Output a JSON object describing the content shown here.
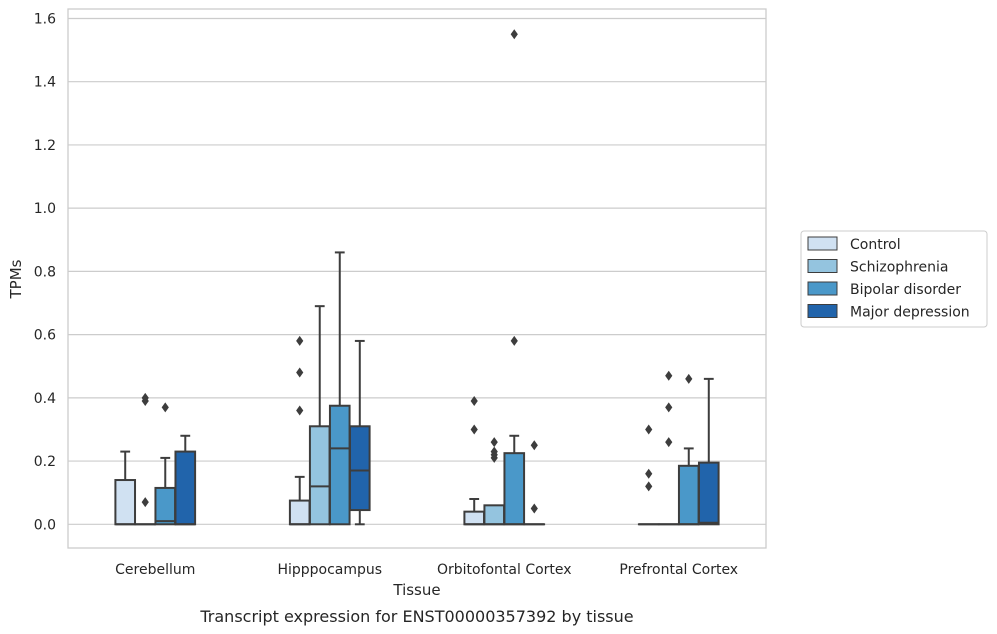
{
  "chart_data": {
    "type": "boxplot",
    "caption": "Transcript expression for ENST00000357392 by tissue",
    "xlabel": "Tissue",
    "ylabel": "TPMs",
    "ylim": [
      -0.075,
      1.63
    ],
    "yticks": [
      0.0,
      0.2,
      0.4,
      0.6,
      0.8,
      1.0,
      1.2,
      1.4,
      1.6
    ],
    "ytick_labels": [
      "0.0",
      "0.2",
      "0.4",
      "0.6",
      "0.8",
      "1.0",
      "1.2",
      "1.4",
      "1.6"
    ],
    "grid": "horizontal",
    "legend_position": "right",
    "categories": [
      "Cerebellum",
      "Hipppocampus",
      "Orbitofontal Cortex",
      "Prefrontal Cortex"
    ],
    "series": [
      {
        "name": "Control",
        "color": "#d0e1f2",
        "boxes": [
          {
            "whisker_low": 0.0,
            "q1": 0.0,
            "median": 0.0,
            "q3": 0.14,
            "whisker_high": 0.23,
            "outliers": []
          },
          {
            "whisker_low": 0.0,
            "q1": 0.0,
            "median": 0.0,
            "q3": 0.075,
            "whisker_high": 0.15,
            "outliers": [
              0.36,
              0.48,
              0.58
            ]
          },
          {
            "whisker_low": 0.0,
            "q1": 0.0,
            "median": 0.0,
            "q3": 0.04,
            "whisker_high": 0.08,
            "outliers": [
              0.3,
              0.39
            ]
          },
          {
            "whisker_low": 0.0,
            "q1": 0.0,
            "median": 0.0,
            "q3": 0.0,
            "whisker_high": 0.0,
            "outliers": [
              0.12,
              0.16,
              0.3
            ]
          }
        ]
      },
      {
        "name": "Schizophrenia",
        "color": "#94c4df",
        "boxes": [
          {
            "whisker_low": 0.0,
            "q1": 0.0,
            "median": 0.0,
            "q3": 0.0,
            "whisker_high": 0.0,
            "outliers": [
              0.07,
              0.39,
              0.4
            ]
          },
          {
            "whisker_low": 0.0,
            "q1": 0.0,
            "median": 0.12,
            "q3": 0.31,
            "whisker_high": 0.69,
            "outliers": []
          },
          {
            "whisker_low": 0.0,
            "q1": 0.0,
            "median": 0.0,
            "q3": 0.06,
            "whisker_high": 0.06,
            "outliers": [
              0.21,
              0.22,
              0.23,
              0.26
            ]
          },
          {
            "whisker_low": 0.0,
            "q1": 0.0,
            "median": 0.0,
            "q3": 0.0,
            "whisker_high": 0.0,
            "outliers": [
              0.26,
              0.37,
              0.47
            ]
          }
        ]
      },
      {
        "name": "Bipolar disorder",
        "color": "#4a98c9",
        "boxes": [
          {
            "whisker_low": 0.0,
            "q1": 0.0,
            "median": 0.01,
            "q3": 0.115,
            "whisker_high": 0.21,
            "outliers": [
              0.37
            ]
          },
          {
            "whisker_low": 0.0,
            "q1": 0.0,
            "median": 0.24,
            "q3": 0.375,
            "whisker_high": 0.86,
            "outliers": []
          },
          {
            "whisker_low": 0.0,
            "q1": 0.0,
            "median": 0.0,
            "q3": 0.225,
            "whisker_high": 0.28,
            "outliers": [
              0.58,
              1.55
            ]
          },
          {
            "whisker_low": 0.0,
            "q1": 0.0,
            "median": 0.0,
            "q3": 0.185,
            "whisker_high": 0.24,
            "outliers": [
              0.46
            ]
          }
        ]
      },
      {
        "name": "Major depression",
        "color": "#2164ab",
        "boxes": [
          {
            "whisker_low": 0.0,
            "q1": 0.0,
            "median": 0.0,
            "q3": 0.23,
            "whisker_high": 0.28,
            "outliers": []
          },
          {
            "whisker_low": 0.0,
            "q1": 0.045,
            "median": 0.17,
            "q3": 0.31,
            "whisker_high": 0.58,
            "outliers": []
          },
          {
            "whisker_low": 0.0,
            "q1": 0.0,
            "median": 0.0,
            "q3": 0.0,
            "whisker_high": 0.0,
            "outliers": [
              0.05,
              0.25
            ]
          },
          {
            "whisker_low": 0.0,
            "q1": 0.0,
            "median": 0.005,
            "q3": 0.195,
            "whisker_high": 0.46,
            "outliers": []
          }
        ]
      }
    ]
  }
}
